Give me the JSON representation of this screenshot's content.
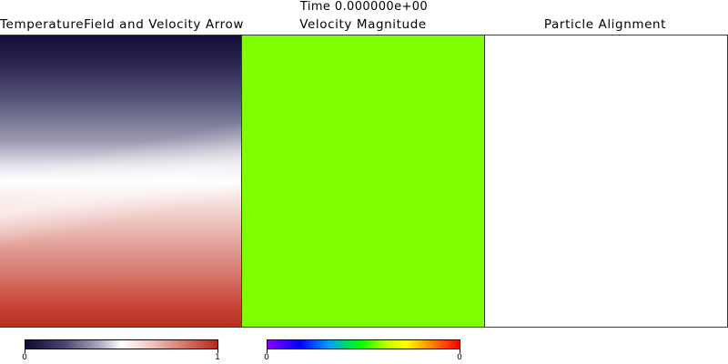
{
  "time_label": "Time 0.000000e+00",
  "panels": [
    {
      "title": "TemperatureField and Velocity Arrow"
    },
    {
      "title": "Velocity Magnitude"
    },
    {
      "title": "Particle Alignment"
    }
  ],
  "colorbars": [
    {
      "min_label": "0",
      "max_label": "1",
      "colormap": "blue-white-red"
    },
    {
      "min_label": "0",
      "max_label": "0",
      "colormap": "rainbow"
    }
  ],
  "colors": {
    "velocity_fill": "#7fff00",
    "frame": "#3a3a3a"
  }
}
